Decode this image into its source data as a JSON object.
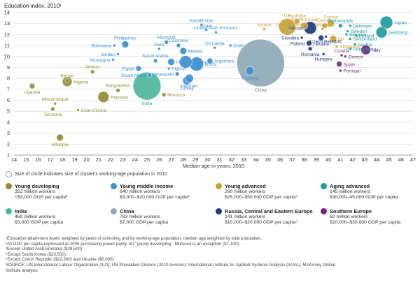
{
  "chart_data": {
    "type": "scatter",
    "title": "Education index, 2010¹",
    "xlabel": "Median age in years, 2010",
    "ylabel": "",
    "xlim": [
      14,
      47
    ],
    "ylim": [
      1,
      14
    ],
    "xticks": [
      14,
      15,
      16,
      17,
      18,
      19,
      20,
      21,
      22,
      23,
      24,
      25,
      26,
      27,
      28,
      29,
      30,
      31,
      32,
      33,
      34,
      35,
      36,
      37,
      38,
      39,
      40,
      41,
      42,
      43,
      44,
      45,
      46,
      47
    ],
    "yticks": [
      1,
      2,
      3,
      4,
      5,
      6,
      7,
      8,
      9,
      10,
      11,
      12,
      13,
      14
    ],
    "grid": "horizontal",
    "bubble_size_note": "Size of circle indicates size of cluster's working-age population in 2010",
    "clusters": [
      {
        "id": "young_developing",
        "name": "Young developing",
        "color": "#8f8f3a",
        "lines": [
          "322 million workers",
          "<$3,000 GDP per capita²"
        ]
      },
      {
        "id": "young_middle_income",
        "name": "Young middle income",
        "color": "#3f8fd0",
        "lines": [
          "640 million workers",
          "$3,000–$20,000 GDP per capita³"
        ]
      },
      {
        "id": "young_advanced",
        "name": "Young advanced",
        "color": "#c9a13a",
        "lines": [
          "290 million workers",
          "$25,000–$50,000 GDP per capita⁴"
        ]
      },
      {
        "id": "aging_advanced",
        "name": "Aging advanced",
        "color": "#1f9aa0",
        "lines": [
          "145 million workers",
          "$30,000–45,000 GDP per capita"
        ]
      },
      {
        "id": "india",
        "name": "India",
        "color": "#4db89c",
        "lines": [
          "469 million workers",
          "$3,000 GDP per capita"
        ]
      },
      {
        "id": "china",
        "name": "China",
        "color": "#8fa9b5",
        "lines": [
          "783 million workers",
          "$7,000 GDP per capita"
        ]
      },
      {
        "id": "russia_cee",
        "name": "Russia, Central and Eastern Europe",
        "color": "#1d3a7a",
        "lines": [
          "141 million workers",
          "$10,000–$20,000 GDP per capita⁵"
        ]
      },
      {
        "id": "southern_europe",
        "name": "Southern Europe",
        "color": "#6a2e78",
        "lines": [
          "60 million workers",
          "$20,000–$30,000 GDP per capita"
        ]
      }
    ],
    "points": [
      {
        "label": "Uganda",
        "x": 15.5,
        "y": 7.3,
        "size": 4,
        "cluster": "young_developing"
      },
      {
        "label": "Kenya",
        "x": 18.4,
        "y": 7.8,
        "size": 3,
        "cluster": "young_developing"
      },
      {
        "label": "Nigeria",
        "x": 18.4,
        "y": 7.7,
        "size": 7,
        "cluster": "young_developing"
      },
      {
        "label": "Ghana",
        "x": 20.5,
        "y": 8.6,
        "size": 3,
        "cluster": "young_developing"
      },
      {
        "label": "Bangladesh",
        "x": 22.6,
        "y": 6.9,
        "size": 3,
        "cluster": "young_developing"
      },
      {
        "label": "Pakistan",
        "x": 21.4,
        "y": 6.3,
        "size": 8,
        "cluster": "young_developing"
      },
      {
        "label": "Mozambique",
        "x": 17.4,
        "y": 5.7,
        "size": 2,
        "cluster": "young_developing"
      },
      {
        "label": "Tanzania",
        "x": 17.2,
        "y": 5.2,
        "size": 3,
        "cluster": "young_developing"
      },
      {
        "label": "Côte d'Ivoire",
        "x": 19.3,
        "y": 5.1,
        "size": 2,
        "cluster": "young_developing"
      },
      {
        "label": "Ethiopia",
        "x": 17.8,
        "y": 2.6,
        "size": 5,
        "cluster": "young_developing"
      },
      {
        "label": "Philippines",
        "x": 23.2,
        "y": 11.1,
        "size": 5,
        "cluster": "young_middle_income"
      },
      {
        "label": "Botswana",
        "x": 22.3,
        "y": 11.0,
        "size": 2,
        "cluster": "young_middle_income"
      },
      {
        "label": "Jordan",
        "x": 22.6,
        "y": 10.2,
        "size": 2,
        "cluster": "young_middle_income"
      },
      {
        "label": "Nicaragua",
        "x": 22.2,
        "y": 9.7,
        "size": 2,
        "cluster": "young_middle_income"
      },
      {
        "label": "Saudi Arabia",
        "x": 25.7,
        "y": 9.6,
        "size": 3,
        "cluster": "young_middle_income"
      },
      {
        "label": "Egypt",
        "x": 24.3,
        "y": 8.9,
        "size": 4,
        "cluster": "young_middle_income"
      },
      {
        "label": "South Africa",
        "x": 25.2,
        "y": 8.3,
        "size": 3,
        "cluster": "young_middle_income"
      },
      {
        "label": "Peru",
        "x": 26.0,
        "y": 10.7,
        "size": 2,
        "cluster": "young_middle_income"
      },
      {
        "label": "Malaysia",
        "x": 26.6,
        "y": 11.3,
        "size": 3,
        "cluster": "young_middle_income"
      },
      {
        "label": "Colombia",
        "x": 27.6,
        "y": 11.0,
        "size": 3,
        "cluster": "young_middle_income"
      },
      {
        "label": "Mexico",
        "x": 28.0,
        "y": 10.5,
        "size": 5,
        "cluster": "young_middle_income"
      },
      {
        "label": "Iran",
        "x": 27.0,
        "y": 9.5,
        "size": 5,
        "cluster": "young_middle_income"
      },
      {
        "label": "Indonesia",
        "x": 28.2,
        "y": 9.5,
        "size": 9,
        "cluster": "young_middle_income"
      },
      {
        "label": "Brazil",
        "x": 29.1,
        "y": 9.3,
        "size": 10,
        "cluster": "young_middle_income"
      },
      {
        "label": "Algeria",
        "x": 26.8,
        "y": 8.9,
        "size": 2,
        "cluster": "young_middle_income"
      },
      {
        "label": "Venezuela",
        "x": 27.5,
        "y": 8.4,
        "size": 3,
        "cluster": "young_middle_income"
      },
      {
        "label": "Turkey",
        "x": 28.3,
        "y": 7.8,
        "size": 6,
        "cluster": "young_middle_income"
      },
      {
        "label": "Vietnam",
        "x": 28.5,
        "y": 8.0,
        "size": 6,
        "cluster": "young_middle_income"
      },
      {
        "label": "Israel",
        "x": 29.9,
        "y": 12.4,
        "size": 2,
        "cluster": "young_middle_income"
      },
      {
        "label": "Kazakhstan",
        "x": 29.5,
        "y": 12.9,
        "size": 2,
        "cluster": "young_middle_income"
      },
      {
        "label": "United Arab Emirates",
        "x": 30.7,
        "y": 12.2,
        "size": 2,
        "cluster": "young_middle_income"
      },
      {
        "label": "Sri Lanka",
        "x": 30.6,
        "y": 10.8,
        "size": 2,
        "cluster": "young_middle_income"
      },
      {
        "label": "Argentina",
        "x": 30.2,
        "y": 9.6,
        "size": 4,
        "cluster": "young_middle_income"
      },
      {
        "label": "Chile",
        "x": 31.9,
        "y": 11.0,
        "size": 2,
        "cluster": "young_middle_income"
      },
      {
        "label": "Thailand",
        "x": 33.5,
        "y": 8.7,
        "size": 6,
        "cluster": "young_middle_income"
      },
      {
        "label": "US",
        "x": 36.6,
        "y": 12.7,
        "size": 12,
        "cluster": "young_advanced"
      },
      {
        "label": "Ireland",
        "x": 34.7,
        "y": 12.5,
        "size": 2,
        "cluster": "young_advanced"
      },
      {
        "label": "Australia",
        "x": 37.4,
        "y": 13.2,
        "size": 4,
        "cluster": "young_advanced"
      },
      {
        "label": "South Korea",
        "x": 38.0,
        "y": 12.8,
        "size": 5,
        "cluster": "young_advanced"
      },
      {
        "label": "New Zealand",
        "x": 36.8,
        "y": 12.5,
        "size": 2,
        "cluster": "young_advanced"
      },
      {
        "label": "France",
        "x": 40.2,
        "y": 13.0,
        "size": 5,
        "cluster": "young_advanced"
      },
      {
        "label": "Canada",
        "x": 39.7,
        "y": 12.8,
        "size": 4,
        "cluster": "young_advanced"
      },
      {
        "label": "Norway",
        "x": 39.5,
        "y": 12.5,
        "size": 2,
        "cluster": "young_advanced"
      },
      {
        "label": "UK",
        "x": 40.4,
        "y": 11.6,
        "size": 5,
        "cluster": "young_advanced"
      },
      {
        "label": "Singapore",
        "x": 40.7,
        "y": 10.9,
        "size": 2,
        "cluster": "young_advanced"
      },
      {
        "label": "Netherlands",
        "x": 41.0,
        "y": 12.8,
        "size": 3,
        "cluster": "aging_advanced"
      },
      {
        "label": "Denmark",
        "x": 41.8,
        "y": 12.8,
        "size": 2,
        "cluster": "aging_advanced"
      },
      {
        "label": "Sweden",
        "x": 41.6,
        "y": 12.3,
        "size": 2,
        "cluster": "aging_advanced"
      },
      {
        "label": "Belgium",
        "x": 41.5,
        "y": 12.0,
        "size": 2,
        "cluster": "aging_advanced"
      },
      {
        "label": "Switzerland",
        "x": 41.8,
        "y": 11.6,
        "size": 2,
        "cluster": "aging_advanced"
      },
      {
        "label": "Finland",
        "x": 42.3,
        "y": 11.9,
        "size": 2,
        "cluster": "aging_advanced"
      },
      {
        "label": "Austria",
        "x": 42.2,
        "y": 11.1,
        "size": 2,
        "cluster": "aging_advanced"
      },
      {
        "label": "Hong Kong",
        "x": 41.8,
        "y": 10.7,
        "size": 2,
        "cluster": "aging_advanced"
      },
      {
        "label": "Japan",
        "x": 44.8,
        "y": 13.1,
        "size": 9,
        "cluster": "aging_advanced"
      },
      {
        "label": "Germany",
        "x": 44.4,
        "y": 12.2,
        "size": 8,
        "cluster": "aging_advanced"
      },
      {
        "label": "India",
        "x": 25.0,
        "y": 7.3,
        "size": 20,
        "cluster": "india"
      },
      {
        "label": "China",
        "x": 34.4,
        "y": 9.4,
        "size": 34,
        "cluster": "china"
      },
      {
        "label": "Morocco",
        "x": 26.4,
        "y": 6.5,
        "size": 3,
        "cluster": "young_developing"
      },
      {
        "label": "Slovakia",
        "x": 37.8,
        "y": 11.7,
        "size": 2,
        "cluster": "russia_cee"
      },
      {
        "label": "Poland",
        "x": 38.4,
        "y": 11.2,
        "size": 4,
        "cluster": "russia_cee"
      },
      {
        "label": "Romania",
        "x": 38.5,
        "y": 10.7,
        "size": 3,
        "cluster": "russia_cee"
      },
      {
        "label": "Russia",
        "x": 38.5,
        "y": 12.6,
        "size": 9,
        "cluster": "russia_cee"
      },
      {
        "label": "Ukraine",
        "x": 39.4,
        "y": 11.7,
        "size": 4,
        "cluster": "russia_cee"
      },
      {
        "label": "Hungary",
        "x": 39.6,
        "y": 10.2,
        "size": 2,
        "cluster": "russia_cee"
      },
      {
        "label": "Czech Republic",
        "x": 39.8,
        "y": 11.8,
        "size": 2,
        "cluster": "russia_cee"
      },
      {
        "label": "Croatia",
        "x": 41.1,
        "y": 10.1,
        "size": 2,
        "cluster": "southern_europe"
      },
      {
        "label": "Greece",
        "x": 41.4,
        "y": 10.0,
        "size": 2,
        "cluster": "southern_europe"
      },
      {
        "label": "Spain",
        "x": 40.9,
        "y": 9.3,
        "size": 4,
        "cluster": "southern_europe"
      },
      {
        "label": "Portugal",
        "x": 41.0,
        "y": 8.7,
        "size": 2,
        "cluster": "southern_europe"
      },
      {
        "label": "Italy",
        "x": 43.1,
        "y": 10.6,
        "size": 7,
        "cluster": "southern_europe"
      }
    ]
  },
  "footnotes": [
    "¹Education-attainment levels weighted by years of schooling and by working-age population; median age weighted by total population.",
    "²All GDP per capita expressed at 2005 purchasing power parity; for \"young developing,\" Morocco is an exception ($7,100).",
    "³Except United Arab Emirates ($28,500).",
    "⁴Except South Korea ($23,500).",
    "⁵Except Czech Republic ($22,300) and Ukraine ($6,000).",
    "SOURCE: UN International Labour Organization (ILO); UN Population Division (2010 revision); International Institute for Applied Systems Analysis (IIASA); McKinsey Global",
    "Institute analysis"
  ]
}
